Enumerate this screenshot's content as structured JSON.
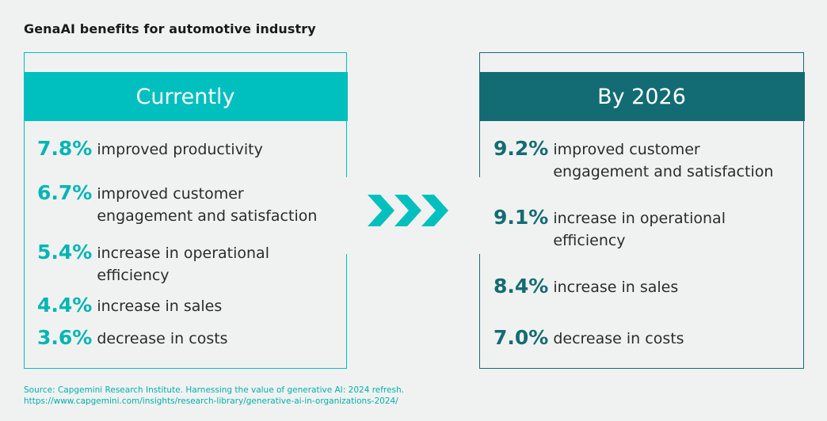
{
  "title": "GenaAI benefits for automotive industry",
  "colors": {
    "currently": "#00bfbf",
    "by2026": "#136c74",
    "text": "#2b2b2b"
  },
  "chart_data": {
    "type": "table",
    "title": "GenaAI benefits for automotive industry",
    "groups": [
      {
        "name": "Currently",
        "items": [
          {
            "value": "7.8%",
            "label": "improved productivity"
          },
          {
            "value": "6.7%",
            "label": "improved customer engagement and satisfaction"
          },
          {
            "value": "5.4%",
            "label": "increase in operational efficiency"
          },
          {
            "value": "4.4%",
            "label": "increase in sales"
          },
          {
            "value": "3.6%",
            "label": "decrease in costs"
          }
        ]
      },
      {
        "name": "By 2026",
        "items": [
          {
            "value": "9.2%",
            "label": "improved customer engagement and satisfaction"
          },
          {
            "value": "9.1%",
            "label": "increase in operational efficiency"
          },
          {
            "value": "8.4%",
            "label": "increase in sales"
          },
          {
            "value": "7.0%",
            "label": "decrease in costs"
          }
        ]
      }
    ]
  },
  "source": {
    "line1": "Source: Capgemini Research Institute. Harnessing the value of generative AI: 2024 refresh.",
    "line2": "https://www.capgemini.com/insights/research-library/generative-ai-in-organizations-2024/"
  }
}
